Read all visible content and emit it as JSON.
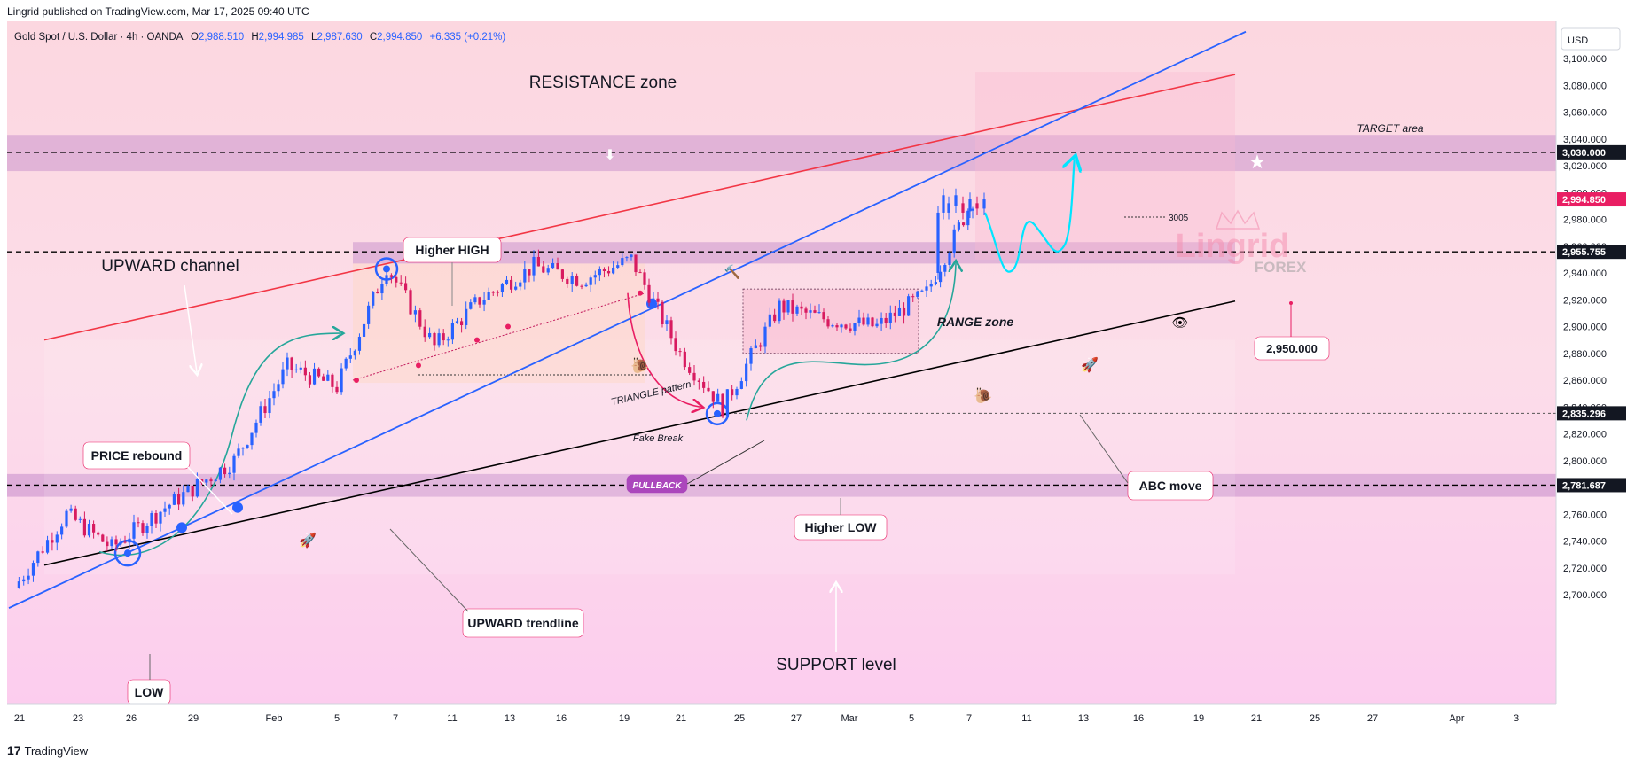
{
  "header": {
    "published": "Lingrid published on TradingView.com, Mar 17, 2025 09:40 UTC"
  },
  "footer": {
    "brand": "TradingView",
    "logo": "17"
  },
  "symbol_line": {
    "symbol": "Gold Spot / U.S. Dollar · 4h · OANDA",
    "open_label": "O",
    "open": "2,988.510",
    "high_label": "H",
    "high": "2,994.985",
    "low_label": "L",
    "low": "2,987.630",
    "close_label": "C",
    "close": "2,994.850",
    "change": "+6.335 (+0.21%)"
  },
  "currency": "USD",
  "colors": {
    "up": "#2962ff",
    "down": "#d81b60",
    "trendline_blue": "#2962ff",
    "channel_red": "#f23645",
    "support_black": "#000000",
    "cyan": "#00e5ff",
    "bg_pink": "#fde3ef"
  },
  "watermark": {
    "line1": "Lingrid",
    "line2": "FOREX"
  },
  "annotations": {
    "resistance": "RESISTANCE zone",
    "target": "TARGET area",
    "upward_channel": "UPWARD channel",
    "higher_high": "Higher HIGH",
    "triangle": "TRIANGLE pattern",
    "fake_break": "Fake Break",
    "pullback": "PULLBACK",
    "range": "RANGE zone",
    "abc": "ABC move",
    "higher_low": "Higher LOW",
    "price_rebound": "PRICE rebound",
    "upward_trendline": "UPWARD trendline",
    "low": "LOW",
    "support": "SUPPORT level",
    "level_3005": "3005",
    "target_price": "2,950.000"
  },
  "chart_data": {
    "type": "line",
    "title": "",
    "xlabel": "",
    "ylabel": "",
    "ylim": [
      2690,
      3120
    ],
    "y_ticks": [
      "3,100.000",
      "3,080.000",
      "3,060.000",
      "3,040.000",
      "3,020.000",
      "3,000.000",
      "2,980.000",
      "2,960.000",
      "2,940.000",
      "2,920.000",
      "2,900.000",
      "2,880.000",
      "2,860.000",
      "2,840.000",
      "2,820.000",
      "2,800.000",
      "2,780.000",
      "2,760.000",
      "2,740.000",
      "2,720.000",
      "2,700.000"
    ],
    "y_tick_values": [
      3100,
      3080,
      3060,
      3040,
      3020,
      3000,
      2980,
      2960,
      2940,
      2920,
      2900,
      2880,
      2860,
      2840,
      2820,
      2800,
      2780,
      2760,
      2740,
      2720,
      2700
    ],
    "x_ticks": [
      "21",
      "23",
      "26",
      "29",
      "Feb",
      "5",
      "7",
      "11",
      "13",
      "16",
      "19",
      "21",
      "25",
      "27",
      "Mar",
      "5",
      "7",
      "11",
      "13",
      "16",
      "19",
      "21",
      "25",
      "27",
      "Apr",
      "3"
    ],
    "price_labels": [
      {
        "value": 3030,
        "text": "3,030.000",
        "style": "dark"
      },
      {
        "value": 2994.85,
        "text": "2,994.850",
        "style": "current"
      },
      {
        "value": 2955.755,
        "text": "2,955.755",
        "style": "dark"
      },
      {
        "value": 2835.296,
        "text": "2,835.296",
        "style": "dark"
      },
      {
        "value": 2781.687,
        "text": "2,781.687",
        "style": "dark"
      }
    ],
    "series": [
      {
        "x": [
          "21",
          "23",
          "26",
          "29",
          "Feb",
          "5",
          "7",
          "11",
          "13",
          "16",
          "19",
          "21",
          "25",
          "27",
          "Mar",
          "5",
          "7",
          "11",
          "13",
          "16"
        ],
        "values": [
          2705,
          2760,
          2735,
          2765,
          2800,
          2870,
          2855,
          2945,
          2885,
          2920,
          2945,
          2935,
          2950,
          2880,
          2840,
          2915,
          2905,
          2900,
          2925,
          2994.85
        ]
      }
    ]
  }
}
